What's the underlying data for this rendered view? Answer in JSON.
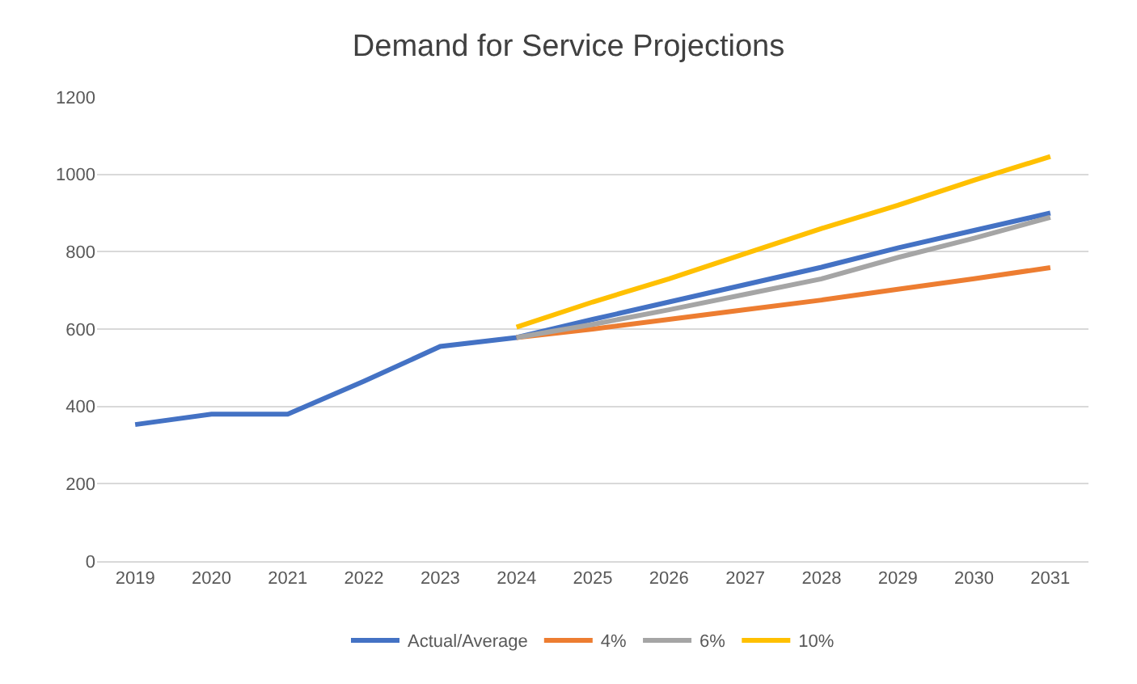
{
  "chart_data": {
    "type": "line",
    "title": "Demand for Service Projections",
    "categories": [
      "2019",
      "2020",
      "2021",
      "2022",
      "2023",
      "2024",
      "2025",
      "2026",
      "2027",
      "2028",
      "2029",
      "2030",
      "2031"
    ],
    "series": [
      {
        "name": "Actual/Average",
        "color": "#4472c4",
        "values": [
          353,
          380,
          380,
          465,
          555,
          578,
          625,
          670,
          715,
          760,
          810,
          855,
          900
        ]
      },
      {
        "name": "4%",
        "color": "#ed7d31",
        "values": [
          null,
          null,
          null,
          null,
          null,
          578,
          600,
          625,
          650,
          675,
          703,
          730,
          759
        ]
      },
      {
        "name": "6%",
        "color": "#a5a5a5",
        "values": [
          null,
          null,
          null,
          null,
          null,
          578,
          612,
          650,
          690,
          730,
          785,
          835,
          889
        ]
      },
      {
        "name": "10%",
        "color": "#ffc000",
        "values": [
          null,
          null,
          null,
          null,
          null,
          605,
          670,
          730,
          795,
          860,
          920,
          985,
          1046
        ]
      }
    ],
    "ylim": [
      0,
      1200
    ],
    "yticks": [
      0,
      200,
      400,
      600,
      800,
      1000,
      1200
    ],
    "grid": "y",
    "legend": "bottom",
    "marker": "none",
    "line_style": "solid"
  }
}
